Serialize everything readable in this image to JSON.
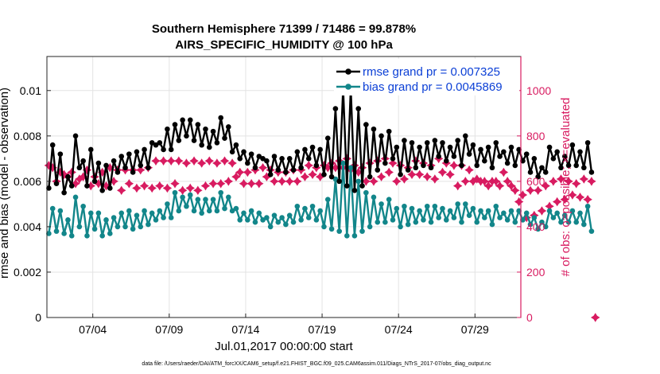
{
  "chart_data": {
    "type": "line",
    "title": "Southern Hemisphere 71399 / 71486 = 99.878%",
    "subtitle": "AIRS_SPECIFIC_HUMIDITY @ 100 hPa",
    "xlabel": "Jul.01,2017 00:00:00 start",
    "ylabel": "rmse and bias (model - observation)",
    "y2label": "# of obs: o=possible; ×=evaluated",
    "footer": "data file: /Users/raeder/DAI/ATM_forcXX/CAM6_setup/f.e21.FHIST_BGC.f09_025.CAM6assim.011/Diags_NTrS_2017-07/obs_diag_output.nc",
    "x_tick_labels": [
      "07/04",
      "07/09",
      "07/14",
      "07/19",
      "07/24",
      "07/29"
    ],
    "x_tick_days": [
      4,
      9,
      14,
      19,
      24,
      29
    ],
    "xlim": [
      1,
      32
    ],
    "ylim": [
      0,
      0.0115
    ],
    "y_ticks": [
      0,
      0.002,
      0.004,
      0.006,
      0.008,
      0.01
    ],
    "y_tick_labels": [
      "0",
      "0.002",
      "0.004",
      "0.006",
      "0.008",
      "0.01"
    ],
    "y2lim": [
      0,
      1150
    ],
    "y2_ticks": [
      0,
      200,
      400,
      600,
      800,
      1000
    ],
    "y2_tick_labels": [
      "0",
      "200",
      "400",
      "600",
      "800",
      "1000"
    ],
    "legend_position": "top-right",
    "series": [
      {
        "name": "rmse grand pr = 0.007325",
        "color": "#000000",
        "axis": "left",
        "values": [
          0.0057,
          0.0076,
          0.0059,
          0.0072,
          0.0055,
          0.0062,
          0.0058,
          0.008,
          0.0066,
          0.0069,
          0.0058,
          0.0074,
          0.006,
          0.0068,
          0.0056,
          0.0067,
          0.0057,
          0.0069,
          0.0064,
          0.0071,
          0.0066,
          0.0072,
          0.0064,
          0.0073,
          0.0067,
          0.0074,
          0.0066,
          0.0077,
          0.0076,
          0.0077,
          0.0074,
          0.0083,
          0.0074,
          0.0085,
          0.0078,
          0.0087,
          0.008,
          0.0087,
          0.0078,
          0.0085,
          0.0076,
          0.0083,
          0.0075,
          0.0082,
          0.0077,
          0.0088,
          0.0079,
          0.0084,
          0.0073,
          0.0076,
          0.007,
          0.0073,
          0.0068,
          0.0072,
          0.0066,
          0.0071,
          0.007,
          0.0069,
          0.0063,
          0.0071,
          0.0065,
          0.007,
          0.0064,
          0.007,
          0.0065,
          0.0073,
          0.0066,
          0.0074,
          0.007,
          0.0075,
          0.0067,
          0.0074,
          0.0063,
          0.0079,
          0.0062,
          0.0092,
          0.006,
          0.0101,
          0.0058,
          0.0101,
          0.0056,
          0.0092,
          0.0058,
          0.0085,
          0.0062,
          0.0083,
          0.0065,
          0.008,
          0.0068,
          0.0082,
          0.007,
          0.0075,
          0.0063,
          0.0078,
          0.0065,
          0.0077,
          0.0066,
          0.0075,
          0.0067,
          0.0077,
          0.0066,
          0.0078,
          0.0071,
          0.0077,
          0.0069,
          0.0075,
          0.0071,
          0.0078,
          0.0067,
          0.008,
          0.0072,
          0.0076,
          0.0067,
          0.0074,
          0.0069,
          0.0075,
          0.0066,
          0.0077,
          0.0071,
          0.0073,
          0.0068,
          0.0075,
          0.0067,
          0.0074,
          0.0069,
          0.0072,
          0.0064,
          0.007,
          0.0062,
          0.0066,
          0.0064,
          0.0075,
          0.007,
          0.0073,
          0.0066,
          0.0071,
          0.0067,
          0.0076,
          0.0067,
          0.0073,
          0.0066,
          0.0077,
          0.0064
        ]
      },
      {
        "name": "bias grand pr = 0.0045869",
        "color": "#12868a",
        "axis": "left",
        "values": [
          0.0037,
          0.0048,
          0.0038,
          0.0047,
          0.0037,
          0.0043,
          0.0036,
          0.0053,
          0.004,
          0.0049,
          0.0036,
          0.0046,
          0.0039,
          0.0046,
          0.0036,
          0.0043,
          0.0037,
          0.0044,
          0.004,
          0.0046,
          0.004,
          0.0047,
          0.0039,
          0.0045,
          0.004,
          0.0047,
          0.0041,
          0.0046,
          0.0043,
          0.0047,
          0.0044,
          0.005,
          0.0044,
          0.0055,
          0.0047,
          0.0053,
          0.0049,
          0.0054,
          0.0047,
          0.0052,
          0.0046,
          0.0052,
          0.0047,
          0.0052,
          0.0047,
          0.0055,
          0.0048,
          0.0053,
          0.0047,
          0.0048,
          0.0043,
          0.0046,
          0.0043,
          0.0047,
          0.0042,
          0.0046,
          0.0043,
          0.0044,
          0.004,
          0.0045,
          0.0042,
          0.0044,
          0.0041,
          0.0045,
          0.0042,
          0.0049,
          0.0043,
          0.0048,
          0.0044,
          0.0049,
          0.0043,
          0.0047,
          0.004,
          0.0052,
          0.0039,
          0.0061,
          0.0038,
          0.0068,
          0.0036,
          0.0066,
          0.0036,
          0.006,
          0.0038,
          0.0055,
          0.004,
          0.0053,
          0.0042,
          0.005,
          0.0042,
          0.0052,
          0.0043,
          0.0048,
          0.004,
          0.0049,
          0.0041,
          0.0048,
          0.0042,
          0.0047,
          0.0043,
          0.0049,
          0.0042,
          0.0049,
          0.0044,
          0.0048,
          0.0043,
          0.0047,
          0.0044,
          0.005,
          0.0042,
          0.005,
          0.0045,
          0.0048,
          0.0042,
          0.0047,
          0.0044,
          0.0047,
          0.0041,
          0.0049,
          0.0044,
          0.0046,
          0.0043,
          0.0047,
          0.0042,
          0.0047,
          0.0043,
          0.0046,
          0.0041,
          0.0044,
          0.0039,
          0.0042,
          0.004,
          0.0047,
          0.0044,
          0.0046,
          0.0042,
          0.0045,
          0.0042,
          0.0047,
          0.0042,
          0.0046,
          0.0041,
          0.0049,
          0.0038
        ]
      },
      {
        "name": "# of obs evaluated",
        "color": "#d81b60",
        "axis": "right",
        "marker": "star",
        "values": [
          670,
          660,
          600,
          640,
          630,
          620,
          640,
          590,
          610,
          620,
          650,
          580,
          620,
          590,
          640,
          580,
          660,
          600,
          650,
          560,
          650,
          590,
          650,
          570,
          650,
          580,
          660,
          570,
          690,
          580,
          690,
          570,
          690,
          590,
          690,
          560,
          680,
          570,
          690,
          560,
          680,
          580,
          690,
          590,
          680,
          590,
          690,
          600,
          680,
          620,
          640,
          590,
          640,
          590,
          650,
          590,
          660,
          620,
          650,
          600,
          640,
          600,
          640,
          600,
          650,
          600,
          650,
          620,
          670,
          630,
          660,
          620,
          670,
          660,
          680,
          660,
          690,
          660,
          700,
          650,
          670,
          640,
          660,
          600,
          680,
          600,
          690,
          620,
          700,
          640,
          680,
          600,
          670,
          610,
          660,
          630,
          690,
          630,
          680,
          620,
          670,
          610,
          700,
          640,
          680,
          630,
          670,
          580,
          670,
          600,
          650,
          600,
          610,
          600,
          600,
          580,
          600,
          600,
          580,
          640,
          600,
          580,
          560,
          510,
          540,
          440,
          560,
          450,
          560,
          470,
          580,
          490,
          600,
          510,
          610,
          520,
          600,
          540,
          590,
          530,
          610,
          520,
          600,
          0
        ]
      }
    ]
  }
}
